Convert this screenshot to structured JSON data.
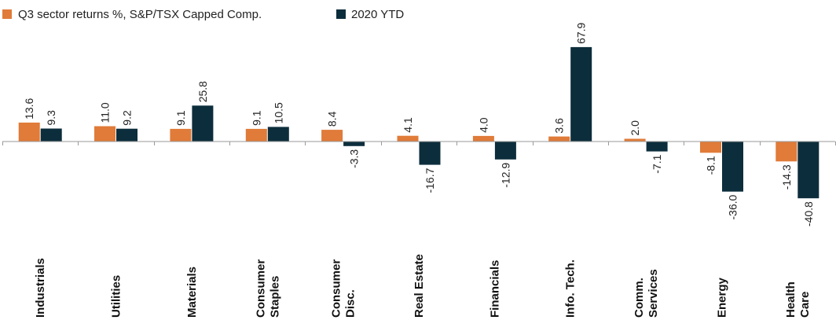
{
  "colors": {
    "q3": "#e07b39",
    "ytd": "#0c2d3c",
    "axis": "#9a9a9a",
    "text": "#222222"
  },
  "legend": [
    {
      "key": "q3",
      "label": "Q3 sector returns %, S&P/TSX Capped Comp."
    },
    {
      "key": "ytd",
      "label": "2020 YTD"
    }
  ],
  "chart_data": {
    "type": "bar",
    "categories": [
      [
        "Industrials"
      ],
      [
        "Utilities"
      ],
      [
        "Materials"
      ],
      [
        "Consumer",
        "Staples"
      ],
      [
        "Consumer",
        "Disc."
      ],
      [
        "Real Estate"
      ],
      [
        "Financials"
      ],
      [
        "Info. Tech."
      ],
      [
        "Comm.",
        "Services"
      ],
      [
        "Energy"
      ],
      [
        "Health",
        "Care"
      ]
    ],
    "series": [
      {
        "name": "Q3 sector returns %, S&P/TSX Capped Comp.",
        "key": "q3",
        "values": [
          13.6,
          11.0,
          9.1,
          9.1,
          8.4,
          4.1,
          4.0,
          3.6,
          2.0,
          -8.1,
          -14.3
        ],
        "labels": [
          "13.6",
          "11.0",
          "9.1",
          "9.1",
          "8.4",
          "4.1",
          "4.0",
          "3.6",
          "2.0",
          "-8.1",
          "-14.3"
        ]
      },
      {
        "name": "2020 YTD",
        "key": "ytd",
        "values": [
          9.3,
          9.2,
          25.8,
          10.5,
          -3.3,
          -16.7,
          -12.9,
          67.9,
          -7.1,
          -36.0,
          -40.8
        ],
        "labels": [
          "9.3",
          "9.2",
          "25.8",
          "10.5",
          "-3.3",
          "-16.7",
          "-12.9",
          "67.9",
          "-7.1",
          "-36.0",
          "-40.8"
        ]
      }
    ],
    "ylim": [
      -40.8,
      67.9
    ],
    "grid": false,
    "legend_position": "top-left",
    "data_labels": "rotated"
  }
}
